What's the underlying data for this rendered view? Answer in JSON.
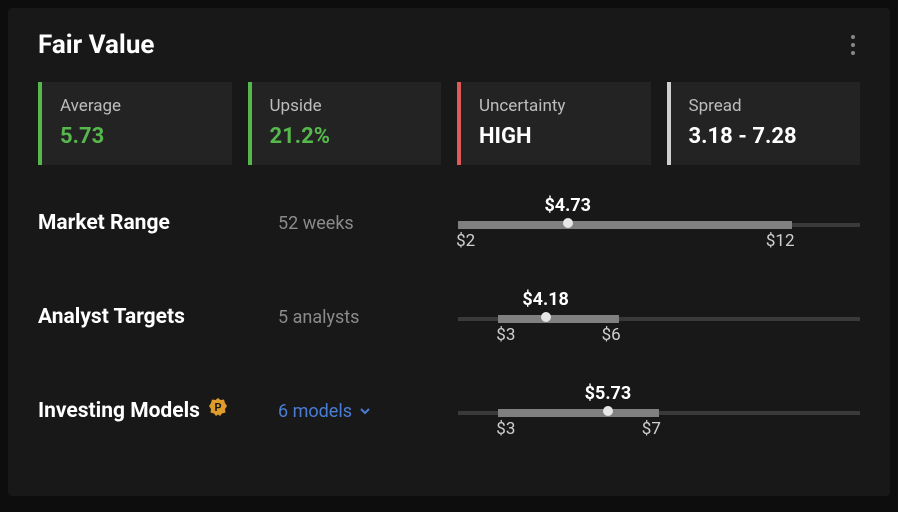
{
  "colors": {
    "card_bg": "#181818",
    "box_bg": "#232323",
    "text_primary": "#ffffff",
    "text_muted": "#bdbdbd",
    "text_dim": "#8a8a8a",
    "green": "#56b74c",
    "red": "#e05a5a",
    "neutral_accent": "#cfcfcf",
    "link": "#4a7dd6",
    "pro_badge": "#e09c2b",
    "slider_track": "#3a3a3a",
    "slider_fill": "#808080",
    "slider_dot": "#e6e6e6"
  },
  "header": {
    "title": "Fair Value"
  },
  "stats": [
    {
      "label": "Average",
      "value": "5.73",
      "accent": "#56b74c",
      "value_color": "#56b74c"
    },
    {
      "label": "Upside",
      "value": "21.2%",
      "accent": "#56b74c",
      "value_color": "#56b74c"
    },
    {
      "label": "Uncertainty",
      "value": "HIGH",
      "accent": "#e05a5a",
      "value_color": "#ffffff"
    },
    {
      "label": "Spread",
      "value": "3.18 - 7.28",
      "accent": "#cfcfcf",
      "value_color": "#ffffff"
    }
  ],
  "ranges": [
    {
      "label": "Market Range",
      "sub": "52 weeks",
      "sub_is_link": false,
      "has_badge": false,
      "value_label": "$4.73",
      "min_label": "$2",
      "max_label": "$12",
      "track_min": 2,
      "track_max": 12,
      "fill_min": 2,
      "fill_max": 10.3,
      "current": 4.73
    },
    {
      "label": "Analyst Targets",
      "sub": "5 analysts",
      "sub_is_link": false,
      "has_badge": false,
      "value_label": "$4.18",
      "min_label": "$3",
      "max_label": "$6",
      "track_min": 2,
      "track_max": 12,
      "fill_min": 3,
      "fill_max": 6,
      "current": 4.18
    },
    {
      "label": "Investing Models",
      "sub": "6 models",
      "sub_is_link": true,
      "has_badge": true,
      "value_label": "$5.73",
      "min_label": "$3",
      "max_label": "$7",
      "track_min": 2,
      "track_max": 12,
      "fill_min": 3,
      "fill_max": 7,
      "current": 5.73
    }
  ]
}
